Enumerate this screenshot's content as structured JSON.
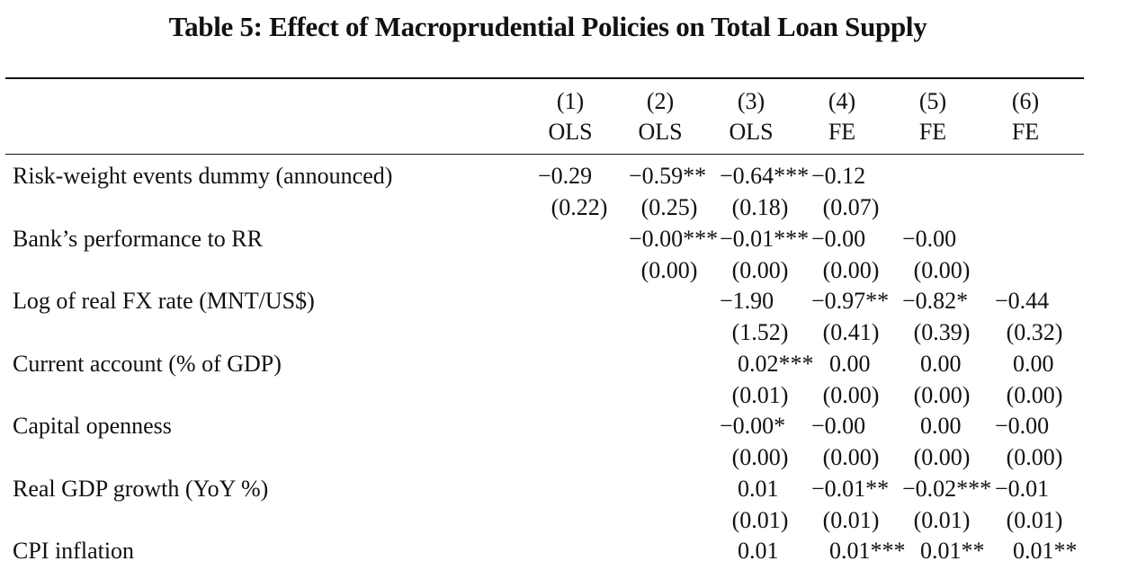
{
  "title": "Table 5: Effect of Macroprudential Policies on Total Loan Supply",
  "columns": [
    {
      "num": "(1)",
      "method": "OLS"
    },
    {
      "num": "(2)",
      "method": "OLS"
    },
    {
      "num": "(3)",
      "method": "OLS"
    },
    {
      "num": "(4)",
      "method": "FE"
    },
    {
      "num": "(5)",
      "method": "FE"
    },
    {
      "num": "(6)",
      "method": "FE"
    }
  ],
  "rows": [
    {
      "label": "Risk-weight events dummy (announced)",
      "coef": [
        "−0.29",
        "−0.59**",
        "−0.64***",
        "−0.12",
        "",
        ""
      ],
      "se": [
        "(0.22)",
        "(0.25)",
        "(0.18)",
        "(0.07)",
        "",
        ""
      ]
    },
    {
      "label": "Bank’s performance to RR",
      "coef": [
        "",
        "−0.00***",
        "−0.01***",
        "−0.00",
        "−0.00",
        ""
      ],
      "se": [
        "",
        "(0.00)",
        "(0.00)",
        "(0.00)",
        "(0.00)",
        ""
      ]
    },
    {
      "label": "Log of real FX rate (MNT/US$)",
      "coef": [
        "",
        "",
        "−1.90",
        "−0.97**",
        "−0.82*",
        "−0.44"
      ],
      "se": [
        "",
        "",
        "(1.52)",
        "(0.41)",
        "(0.39)",
        "(0.32)"
      ]
    },
    {
      "label": "Current account (% of GDP)",
      "coef": [
        "",
        "",
        "0.02***",
        "0.00",
        "0.00",
        "0.00"
      ],
      "se": [
        "",
        "",
        "(0.01)",
        "(0.00)",
        "(0.00)",
        "(0.00)"
      ]
    },
    {
      "label": "Capital openness",
      "coef": [
        "",
        "",
        "−0.00*",
        "−0.00",
        "0.00",
        "−0.00"
      ],
      "se": [
        "",
        "",
        "(0.00)",
        "(0.00)",
        "(0.00)",
        "(0.00)"
      ]
    },
    {
      "label": "Real GDP growth (YoY %)",
      "coef": [
        "",
        "",
        "0.01",
        "−0.01**",
        "−0.02***",
        "−0.01"
      ],
      "se": [
        "",
        "",
        "(0.01)",
        "(0.01)",
        "(0.01)",
        "(0.01)"
      ]
    },
    {
      "label": "CPI inflation",
      "coef": [
        "",
        "",
        "0.01",
        "0.01***",
        "0.01**",
        "0.01**"
      ],
      "se": [
        "",
        "",
        "",
        "",
        "",
        ""
      ]
    }
  ]
}
